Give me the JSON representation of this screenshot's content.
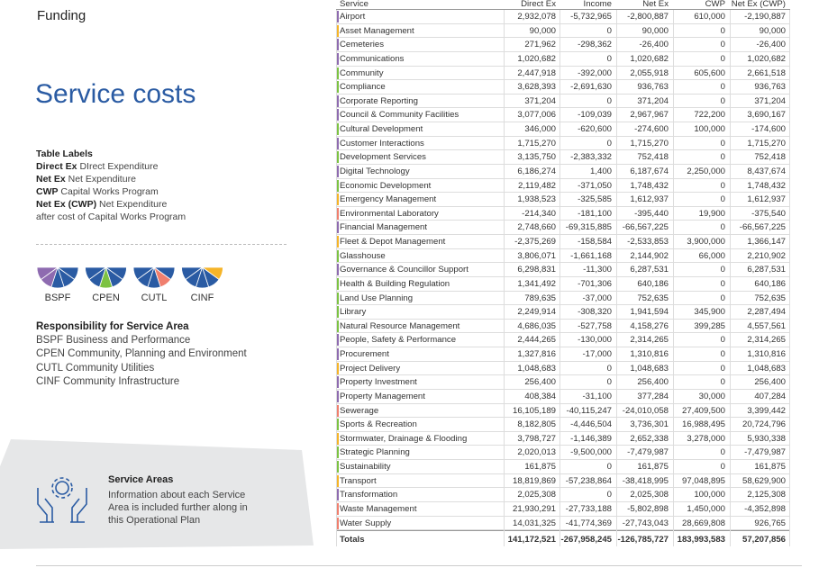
{
  "header": {
    "section": "Funding",
    "title": "Service costs"
  },
  "table_labels": {
    "heading": "Table Labels",
    "items": [
      {
        "abbr": "Direct Ex",
        "text": "DIrect Expenditure"
      },
      {
        "abbr": "Net Ex",
        "text": "Net Expenditure"
      },
      {
        "abbr": "CWP",
        "text": "Capital Works Program"
      },
      {
        "abbr": "Net Ex (CWP)",
        "text": "Net Expenditure"
      }
    ],
    "note": "after cost of Capital Works Program"
  },
  "icons": [
    "BSPF",
    "CPEN",
    "CUTL",
    "CINF"
  ],
  "responsibility": {
    "heading": "Responsibility for Service Area",
    "items": [
      "BSPF Business and Performance",
      "CPEN Community, Planning and Environment",
      "CUTL Community Utilities",
      "CINF Community Infrastructure"
    ]
  },
  "service_areas": {
    "heading": "Service Areas",
    "text": [
      "Information about each Service",
      "Area is included further along in",
      "this Operational Plan"
    ]
  },
  "table": {
    "columns": [
      "Service",
      "Direct Ex",
      "Income",
      "Net Ex",
      "CWP",
      "Net Ex (CWP)"
    ],
    "rows": [
      [
        "Airport",
        "2,932,078",
        "-5,732,965",
        "-2,800,887",
        "610,000",
        "-2,190,887"
      ],
      [
        "Asset Management",
        "90,000",
        "0",
        "90,000",
        "0",
        "90,000"
      ],
      [
        "Cemeteries",
        "271,962",
        "-298,362",
        "-26,400",
        "0",
        "-26,400"
      ],
      [
        "Communications",
        "1,020,682",
        "0",
        "1,020,682",
        "0",
        "1,020,682"
      ],
      [
        "Community",
        "2,447,918",
        "-392,000",
        "2,055,918",
        "605,600",
        "2,661,518"
      ],
      [
        "Compliance",
        "3,628,393",
        "-2,691,630",
        "936,763",
        "0",
        "936,763"
      ],
      [
        "Corporate Reporting",
        "371,204",
        "0",
        "371,204",
        "0",
        "371,204"
      ],
      [
        "Council & Community Facilities",
        "3,077,006",
        "-109,039",
        "2,967,967",
        "722,200",
        "3,690,167"
      ],
      [
        "Cultural Development",
        "346,000",
        "-620,600",
        "-274,600",
        "100,000",
        "-174,600"
      ],
      [
        "Customer Interactions",
        "1,715,270",
        "0",
        "1,715,270",
        "0",
        "1,715,270"
      ],
      [
        "Development Services",
        "3,135,750",
        "-2,383,332",
        "752,418",
        "0",
        "752,418"
      ],
      [
        "Digital Technology",
        "6,186,274",
        "1,400",
        "6,187,674",
        "2,250,000",
        "8,437,674"
      ],
      [
        "Economic Development",
        "2,119,482",
        "-371,050",
        "1,748,432",
        "0",
        "1,748,432"
      ],
      [
        "Emergency Management",
        "1,938,523",
        "-325,585",
        "1,612,937",
        "0",
        "1,612,937"
      ],
      [
        "Environmental Laboratory",
        "-214,340",
        "-181,100",
        "-395,440",
        "19,900",
        "-375,540"
      ],
      [
        "Financial Management",
        "2,748,660",
        "-69,315,885",
        "-66,567,225",
        "0",
        "-66,567,225"
      ],
      [
        "Fleet & Depot Management",
        "-2,375,269",
        "-158,584",
        "-2,533,853",
        "3,900,000",
        "1,366,147"
      ],
      [
        "Glasshouse",
        "3,806,071",
        "-1,661,168",
        "2,144,902",
        "66,000",
        "2,210,902"
      ],
      [
        "Governance & Councillor Support",
        "6,298,831",
        "-11,300",
        "6,287,531",
        "0",
        "6,287,531"
      ],
      [
        "Health & Building Regulation",
        "1,341,492",
        "-701,306",
        "640,186",
        "0",
        "640,186"
      ],
      [
        "Land Use Planning",
        "789,635",
        "-37,000",
        "752,635",
        "0",
        "752,635"
      ],
      [
        "Library",
        "2,249,914",
        "-308,320",
        "1,941,594",
        "345,900",
        "2,287,494"
      ],
      [
        "Natural Resource Management",
        "4,686,035",
        "-527,758",
        "4,158,276",
        "399,285",
        "4,557,561"
      ],
      [
        "People, Safety & Performance",
        "2,444,265",
        "-130,000",
        "2,314,265",
        "0",
        "2,314,265"
      ],
      [
        "Procurement",
        "1,327,816",
        "-17,000",
        "1,310,816",
        "0",
        "1,310,816"
      ],
      [
        "Project Delivery",
        "1,048,683",
        "0",
        "1,048,683",
        "0",
        "1,048,683"
      ],
      [
        "Property Investment",
        "256,400",
        "0",
        "256,400",
        "0",
        "256,400"
      ],
      [
        "Property Management",
        "408,384",
        "-31,100",
        "377,284",
        "30,000",
        "407,284"
      ],
      [
        "Sewerage",
        "16,105,189",
        "-40,115,247",
        "-24,010,058",
        "27,409,500",
        "3,399,442"
      ],
      [
        "Sports & Recreation",
        "8,182,805",
        "-4,446,504",
        "3,736,301",
        "16,988,495",
        "20,724,796"
      ],
      [
        "Stormwater, Drainage & Flooding",
        "3,798,727",
        "-1,146,389",
        "2,652,338",
        "3,278,000",
        "5,930,338"
      ],
      [
        "Strategic Planning",
        "2,020,013",
        "-9,500,000",
        "-7,479,987",
        "0",
        "-7,479,987"
      ],
      [
        "Sustainability",
        "161,875",
        "0",
        "161,875",
        "0",
        "161,875"
      ],
      [
        "Transport",
        "18,819,869",
        "-57,238,864",
        "-38,418,995",
        "97,048,895",
        "58,629,900"
      ],
      [
        "Transformation",
        "2,025,308",
        "0",
        "2,025,308",
        "100,000",
        "2,125,308"
      ],
      [
        "Waste Management",
        "21,930,291",
        "-27,733,188",
        "-5,802,898",
        "1,450,000",
        "-4,352,898"
      ],
      [
        "Water Supply",
        "14,031,325",
        "-41,774,369",
        "-27,743,043",
        "28,669,808",
        "926,765"
      ]
    ],
    "totals": [
      "Totals",
      "141,172,521",
      "-267,958,245",
      "-126,785,727",
      "183,993,583",
      "57,207,856"
    ]
  }
}
